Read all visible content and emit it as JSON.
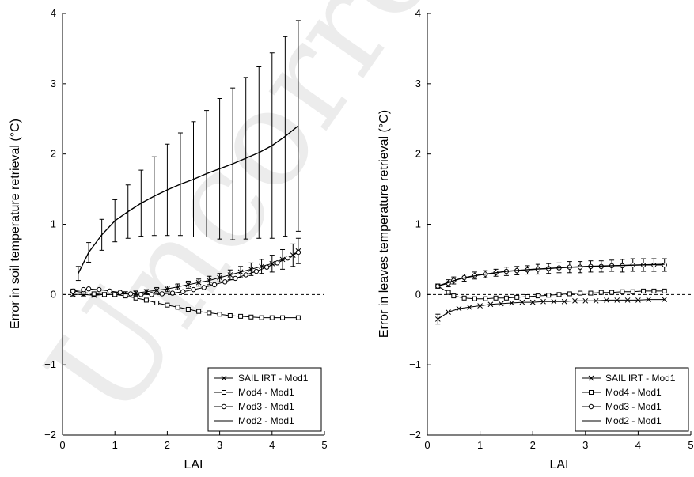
{
  "watermark": "Uncorrected",
  "chart_data": [
    {
      "type": "line",
      "xlabel": "LAI",
      "ylabel": "Error in soil temperature retrieval (°C)",
      "xlim": [
        0,
        5
      ],
      "ylim": [
        -2,
        4
      ],
      "xticks": [
        "0",
        "1",
        "2",
        "3",
        "4",
        "5"
      ],
      "yticks": [
        "−2",
        "−1",
        "0",
        "1",
        "2",
        "3",
        "4"
      ],
      "legend_position": "bottom-right",
      "zero_line": "dashed",
      "series": [
        {
          "name": "SAIL IRT - Mod1",
          "marker": "x",
          "x": [
            0.2,
            0.4,
            0.6,
            0.8,
            1.0,
            1.2,
            1.4,
            1.6,
            1.8,
            2.0,
            2.2,
            2.4,
            2.6,
            2.8,
            3.0,
            3.2,
            3.4,
            3.6,
            3.8,
            4.0,
            4.2,
            4.4,
            4.5
          ],
          "y": [
            0.0,
            0.0,
            -0.01,
            0.0,
            0.0,
            0.01,
            0.02,
            0.04,
            0.06,
            0.08,
            0.11,
            0.14,
            0.17,
            0.2,
            0.24,
            0.28,
            0.32,
            0.36,
            0.4,
            0.44,
            0.5,
            0.56,
            0.62
          ],
          "err": [
            0.02,
            0.02,
            0.02,
            0.02,
            0.02,
            0.03,
            0.03,
            0.03,
            0.04,
            0.04,
            0.04,
            0.05,
            0.05,
            0.06,
            0.06,
            0.07,
            0.08,
            0.09,
            0.1,
            0.12,
            0.14,
            0.16,
            0.18
          ]
        },
        {
          "name": "Mod4 - Mod1",
          "marker": "square",
          "x": [
            0.2,
            0.4,
            0.6,
            0.8,
            1.0,
            1.2,
            1.4,
            1.6,
            1.8,
            2.0,
            2.2,
            2.4,
            2.6,
            2.8,
            3.0,
            3.2,
            3.4,
            3.6,
            3.8,
            4.0,
            4.2,
            4.5
          ],
          "y": [
            0.05,
            0.03,
            0.01,
            0.0,
            0.0,
            -0.02,
            -0.05,
            -0.08,
            -0.12,
            -0.15,
            -0.18,
            -0.21,
            -0.24,
            -0.26,
            -0.28,
            -0.3,
            -0.31,
            -0.32,
            -0.33,
            -0.33,
            -0.33,
            -0.33
          ]
        },
        {
          "name": "Mod3 - Mod1",
          "marker": "circle",
          "x": [
            0.2,
            0.4,
            0.5,
            0.7,
            0.9,
            1.1,
            1.3,
            1.5,
            1.7,
            1.9,
            2.1,
            2.3,
            2.5,
            2.7,
            2.9,
            3.1,
            3.3,
            3.5,
            3.7,
            3.9,
            4.1,
            4.3,
            4.5
          ],
          "y": [
            0.05,
            0.07,
            0.08,
            0.07,
            0.05,
            0.03,
            0.01,
            0.0,
            0.0,
            0.01,
            0.02,
            0.04,
            0.07,
            0.1,
            0.14,
            0.18,
            0.23,
            0.28,
            0.33,
            0.39,
            0.45,
            0.52,
            0.6
          ]
        },
        {
          "name": "Mod2 - Mod1",
          "marker": "none",
          "x": [
            0.3,
            0.5,
            0.75,
            1.0,
            1.25,
            1.5,
            1.75,
            2.0,
            2.25,
            2.5,
            2.75,
            3.0,
            3.25,
            3.5,
            3.75,
            4.0,
            4.25,
            4.5
          ],
          "y": [
            0.3,
            0.6,
            0.85,
            1.05,
            1.18,
            1.3,
            1.4,
            1.49,
            1.57,
            1.64,
            1.72,
            1.79,
            1.86,
            1.94,
            2.02,
            2.12,
            2.25,
            2.4
          ],
          "err": [
            0.1,
            0.14,
            0.22,
            0.3,
            0.38,
            0.47,
            0.56,
            0.65,
            0.73,
            0.82,
            0.9,
            1.0,
            1.08,
            1.15,
            1.22,
            1.32,
            1.42,
            1.5
          ]
        }
      ]
    },
    {
      "type": "line",
      "xlabel": "LAI",
      "ylabel": "Error in leaves temperature retrieval (°C)",
      "xlim": [
        0,
        5
      ],
      "ylim": [
        -2,
        4
      ],
      "xticks": [
        "0",
        "1",
        "2",
        "3",
        "4",
        "5"
      ],
      "yticks": [
        "−2",
        "−1",
        "0",
        "1",
        "2",
        "3",
        "4"
      ],
      "legend_position": "bottom-right",
      "zero_line": "dashed",
      "series": [
        {
          "name": "SAIL IRT - Mod1",
          "marker": "x",
          "x": [
            0.2,
            0.4,
            0.6,
            0.8,
            1.0,
            1.2,
            1.4,
            1.6,
            1.8,
            2.0,
            2.2,
            2.4,
            2.6,
            2.8,
            3.0,
            3.2,
            3.4,
            3.6,
            3.8,
            4.0,
            4.2,
            4.5
          ],
          "y": [
            -0.35,
            -0.25,
            -0.2,
            -0.18,
            -0.16,
            -0.14,
            -0.13,
            -0.12,
            -0.11,
            -0.11,
            -0.1,
            -0.1,
            -0.1,
            -0.09,
            -0.09,
            -0.09,
            -0.08,
            -0.08,
            -0.08,
            -0.08,
            -0.07,
            -0.07
          ],
          "err": [
            0.07,
            0,
            0,
            0,
            0,
            0,
            0,
            0,
            0,
            0,
            0,
            0,
            0,
            0,
            0,
            0,
            0,
            0,
            0,
            0,
            0,
            0
          ]
        },
        {
          "name": "Mod4 - Mod1",
          "marker": "square",
          "x": [
            0.2,
            0.4,
            0.5,
            0.7,
            0.9,
            1.1,
            1.3,
            1.5,
            1.7,
            1.9,
            2.1,
            2.3,
            2.5,
            2.7,
            2.9,
            3.1,
            3.3,
            3.5,
            3.7,
            3.9,
            4.1,
            4.3,
            4.5
          ],
          "y": [
            0.12,
            0.03,
            -0.02,
            -0.05,
            -0.06,
            -0.06,
            -0.05,
            -0.05,
            -0.04,
            -0.03,
            -0.02,
            -0.01,
            0.0,
            0.01,
            0.02,
            0.02,
            0.03,
            0.03,
            0.04,
            0.04,
            0.05,
            0.05,
            0.05
          ]
        },
        {
          "name": "Mod3 - Mod1",
          "marker": "circle",
          "x": [
            0.2,
            0.4,
            0.5,
            0.7,
            0.9,
            1.1,
            1.3,
            1.5,
            1.7,
            1.9,
            2.1,
            2.3,
            2.5,
            2.7,
            2.9,
            3.1,
            3.3,
            3.5,
            3.7,
            3.9,
            4.1,
            4.3,
            4.5
          ],
          "y": [
            0.12,
            0.16,
            0.2,
            0.24,
            0.27,
            0.29,
            0.31,
            0.33,
            0.34,
            0.35,
            0.36,
            0.37,
            0.38,
            0.39,
            0.39,
            0.4,
            0.4,
            0.41,
            0.41,
            0.42,
            0.42,
            0.42,
            0.42
          ],
          "err": [
            0.03,
            0.05,
            0.05,
            0.05,
            0.05,
            0.05,
            0.05,
            0.06,
            0.06,
            0.06,
            0.07,
            0.07,
            0.07,
            0.08,
            0.08,
            0.08,
            0.08,
            0.08,
            0.09,
            0.09,
            0.09,
            0.09,
            0.09
          ]
        },
        {
          "name": "Mod2 - Mod1",
          "marker": "none",
          "x": [
            0.2,
            0.4,
            0.6,
            0.8,
            1.0,
            1.5,
            2.0,
            2.5,
            3.0,
            3.5,
            4.0,
            4.5
          ],
          "y": [
            0.12,
            0.17,
            0.22,
            0.25,
            0.28,
            0.33,
            0.36,
            0.38,
            0.4,
            0.41,
            0.42,
            0.43
          ]
        }
      ]
    }
  ]
}
